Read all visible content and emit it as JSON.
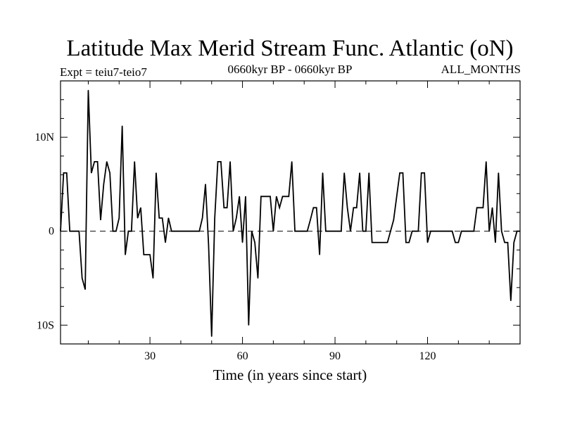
{
  "chart_data": {
    "type": "line",
    "title": "Latitude Max Merid Stream Func. Atlantic (oN)",
    "subtitle_left": "Expt = teiu7-teio7",
    "subtitle_center": "0660kyr BP - 0660kyr BP",
    "subtitle_right": "ALL_MONTHS",
    "xlabel": "Time (in years since start)",
    "ylabel": "",
    "xlim": [
      1,
      150
    ],
    "ylim": [
      -12,
      16
    ],
    "xticks": [
      30,
      60,
      90,
      120
    ],
    "xtick_labels": [
      "30",
      "60",
      "90",
      "120"
    ],
    "xtick_minor_step": 10,
    "yticks": [
      -10,
      0,
      10
    ],
    "ytick_labels": [
      "10S",
      "0",
      "10N"
    ],
    "ytick_minor_step": 2,
    "zero_line": true,
    "series": [
      {
        "name": "teiu7-teio7",
        "x": [
          1,
          2,
          3,
          4,
          5,
          6,
          7,
          8,
          9,
          10,
          11,
          12,
          13,
          14,
          15,
          16,
          17,
          18,
          19,
          20,
          21,
          22,
          23,
          24,
          25,
          26,
          27,
          28,
          29,
          30,
          31,
          32,
          33,
          34,
          35,
          36,
          37,
          38,
          39,
          40,
          41,
          42,
          43,
          44,
          45,
          46,
          47,
          48,
          49,
          50,
          51,
          52,
          53,
          54,
          55,
          56,
          57,
          58,
          59,
          60,
          61,
          62,
          63,
          64,
          65,
          66,
          67,
          68,
          69,
          70,
          71,
          72,
          73,
          74,
          75,
          76,
          77,
          78,
          79,
          80,
          81,
          82,
          83,
          84,
          85,
          86,
          87,
          88,
          89,
          90,
          91,
          92,
          93,
          94,
          95,
          96,
          97,
          98,
          99,
          100,
          101,
          102,
          103,
          104,
          105,
          106,
          107,
          108,
          109,
          110,
          111,
          112,
          113,
          114,
          115,
          116,
          117,
          118,
          119,
          120,
          121,
          122,
          123,
          124,
          125,
          126,
          127,
          128,
          129,
          130,
          131,
          132,
          133,
          134,
          135,
          136,
          137,
          138,
          139,
          140,
          141,
          142,
          143,
          144,
          145,
          146,
          147,
          148,
          149,
          150
        ],
        "y": [
          0,
          6.2,
          6.2,
          0,
          0,
          0,
          0,
          -5,
          -6.2,
          15,
          6.2,
          7.4,
          7.4,
          1.2,
          5,
          7.4,
          6.2,
          0,
          0,
          1.4,
          11.2,
          -2.5,
          0,
          0,
          7.4,
          1.4,
          2.5,
          -2.5,
          -2.5,
          -2.5,
          -5,
          6.2,
          1.4,
          1.4,
          -1.2,
          1.4,
          0,
          0,
          0,
          0,
          0,
          0,
          0,
          0,
          0,
          0,
          1.4,
          5,
          -1.4,
          -11.2,
          1.4,
          7.4,
          7.4,
          2.5,
          2.5,
          7.4,
          0,
          1.4,
          3.7,
          -1.2,
          3.7,
          -10,
          0,
          -1.2,
          -5,
          3.7,
          3.7,
          3.7,
          3.7,
          0,
          3.7,
          2.5,
          3.7,
          3.7,
          3.7,
          7.4,
          0,
          0,
          0,
          0,
          0,
          1.2,
          2.5,
          2.5,
          -2.5,
          6.2,
          0,
          0,
          0,
          0,
          0,
          0,
          6.2,
          2.5,
          0,
          2.5,
          2.5,
          6.2,
          0,
          0,
          6.2,
          -1.2,
          -1.2,
          -1.2,
          -1.2,
          -1.2,
          -1.2,
          0,
          1.2,
          3.7,
          6.2,
          6.2,
          -1.2,
          -1.2,
          0,
          0,
          0,
          6.2,
          6.2,
          -1.2,
          0,
          0,
          0,
          0,
          0,
          0,
          0,
          0,
          -1.2,
          -1.2,
          0,
          0,
          0,
          0,
          0,
          2.5,
          2.5,
          2.5,
          7.4,
          0,
          2.5,
          -1.2,
          6.2,
          0,
          -1.2,
          -1.2,
          -7.4,
          -1.2,
          0,
          0
        ]
      }
    ]
  }
}
